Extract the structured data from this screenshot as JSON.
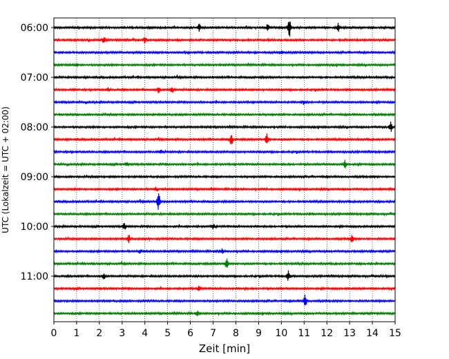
{
  "chart_data": {
    "type": "line",
    "title": "",
    "xlabel": "Zeit  [min]",
    "ylabel": "UTC (Lokalzeit = UTC + 02:00)",
    "xlim": [
      0,
      15
    ],
    "x_ticks": [
      "0",
      "1",
      "2",
      "3",
      "4",
      "5",
      "6",
      "7",
      "8",
      "9",
      "10",
      "11",
      "12",
      "13",
      "14",
      "15"
    ],
    "y_tick_labels": [
      "06:00",
      "07:00",
      "08:00",
      "09:00",
      "10:00",
      "11:00"
    ],
    "traces_per_hour": 4,
    "trace_start": "06:00",
    "trace_interval_min": 15,
    "vertical_grid": true,
    "grid_style": "dotted",
    "trace_colors": [
      "#000000",
      "#ff0000",
      "#0000ff",
      "#008000"
    ],
    "series": [
      {
        "start": "06:00",
        "events": [
          {
            "t": 6.4,
            "amp": 5
          },
          {
            "t": 9.4,
            "amp": 6
          },
          {
            "t": 10.35,
            "amp": 14
          },
          {
            "t": 12.5,
            "amp": 7
          }
        ]
      },
      {
        "start": "06:15",
        "events": [
          {
            "t": 2.2,
            "amp": 4
          },
          {
            "t": 4.0,
            "amp": 4
          }
        ]
      },
      {
        "start": "06:30",
        "events": [
          {
            "t": 10.0,
            "amp": 3
          }
        ]
      },
      {
        "start": "06:45",
        "events": [
          {
            "t": 1.0,
            "amp": 3
          }
        ]
      },
      {
        "start": "07:00",
        "events": []
      },
      {
        "start": "07:15",
        "events": [
          {
            "t": 2.4,
            "amp": 3
          },
          {
            "t": 4.6,
            "amp": 4
          },
          {
            "t": 5.2,
            "amp": 5
          }
        ]
      },
      {
        "start": "07:30",
        "events": [
          {
            "t": 11.0,
            "amp": 3
          }
        ]
      },
      {
        "start": "07:45",
        "events": []
      },
      {
        "start": "08:00",
        "events": [
          {
            "t": 14.8,
            "amp": 7
          }
        ]
      },
      {
        "start": "08:15",
        "events": [
          {
            "t": 7.8,
            "amp": 9
          },
          {
            "t": 9.35,
            "amp": 10
          }
        ]
      },
      {
        "start": "08:30",
        "events": [
          {
            "t": 4.7,
            "amp": 3
          }
        ]
      },
      {
        "start": "08:45",
        "events": [
          {
            "t": 3.2,
            "amp": 3
          },
          {
            "t": 12.8,
            "amp": 6
          }
        ]
      },
      {
        "start": "09:00",
        "events": []
      },
      {
        "start": "09:15",
        "events": [
          {
            "t": 4.5,
            "amp": 3
          }
        ]
      },
      {
        "start": "09:30",
        "events": [
          {
            "t": 4.6,
            "amp": 13
          }
        ]
      },
      {
        "start": "09:45",
        "events": []
      },
      {
        "start": "10:00",
        "events": [
          {
            "t": 3.1,
            "amp": 5
          },
          {
            "t": 7.0,
            "amp": 4
          }
        ]
      },
      {
        "start": "10:15",
        "events": [
          {
            "t": 3.3,
            "amp": 6
          },
          {
            "t": 13.1,
            "amp": 5
          }
        ]
      },
      {
        "start": "10:30",
        "events": [
          {
            "t": 3.8,
            "amp": 3
          },
          {
            "t": 7.4,
            "amp": 4
          }
        ]
      },
      {
        "start": "10:45",
        "events": [
          {
            "t": 7.6,
            "amp": 12
          }
        ]
      },
      {
        "start": "11:00",
        "events": [
          {
            "t": 2.2,
            "amp": 4
          },
          {
            "t": 10.3,
            "amp": 8
          }
        ]
      },
      {
        "start": "11:15",
        "events": [
          {
            "t": 6.4,
            "amp": 4
          }
        ]
      },
      {
        "start": "11:30",
        "events": [
          {
            "t": 11.05,
            "amp": 9
          }
        ]
      },
      {
        "start": "11:45",
        "events": [
          {
            "t": 6.3,
            "amp": 3
          }
        ]
      }
    ]
  }
}
